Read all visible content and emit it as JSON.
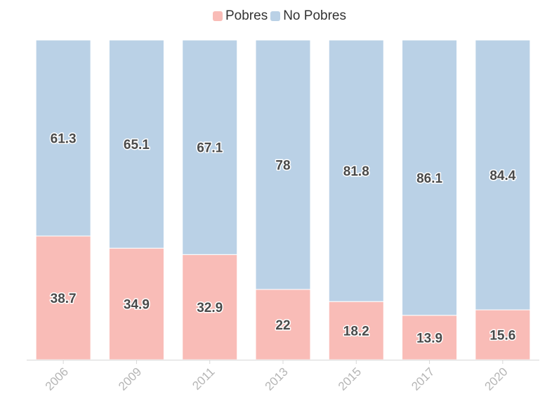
{
  "chart_data": {
    "type": "bar",
    "stacked": true,
    "categories": [
      "2006",
      "2009",
      "2011",
      "2013",
      "2015",
      "2017",
      "2020"
    ],
    "series": [
      {
        "name": "Pobres",
        "color": "#f9bcb7",
        "values": [
          38.7,
          34.9,
          32.9,
          22,
          18.2,
          13.9,
          15.6
        ]
      },
      {
        "name": "No Pobres",
        "color": "#bad1e6",
        "values": [
          61.3,
          65.1,
          67.1,
          78,
          81.8,
          86.1,
          84.4
        ]
      }
    ],
    "ylim": [
      0,
      100
    ],
    "grid": false,
    "legend_position": "top-center",
    "x_tick_rotation": -45
  }
}
